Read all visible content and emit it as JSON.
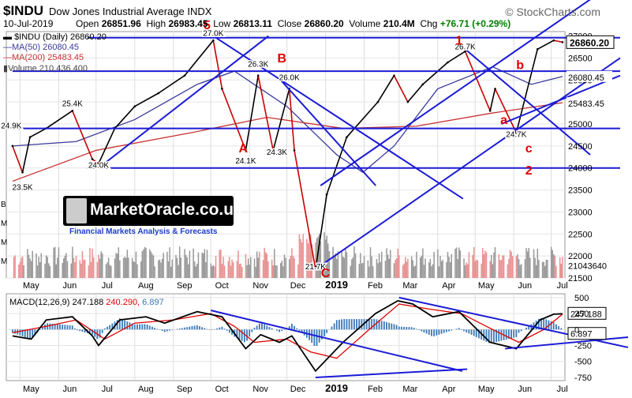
{
  "header": {
    "symbol": "$INDU",
    "name": "Dow Jones Industrial Average INDX",
    "logo": "© StockCharts.com",
    "date": "10-Jul-2019",
    "open_label": "Open",
    "open": "26851.96",
    "high_label": "High",
    "high": "26983.45",
    "low_label": "Low",
    "low": "26813.11",
    "close_label": "Close",
    "close": "26860.20",
    "volume_label": "Volume",
    "volume": "210.4M",
    "chg_label": "Chg",
    "chg": "+76.71 (+0.29%)"
  },
  "legend": {
    "price": "$INDU (Daily) 26860.20",
    "ma50": "MA(50) 26080.45",
    "ma200": "MA(200) 25483.45",
    "volume": "Volume 210,436,400"
  },
  "watermark": {
    "name": "MarketOracle.co.uk",
    "tagline": "Financial Markets Analysis & Forecasts"
  },
  "colors": {
    "price_up": "#000000",
    "price_down": "#cc0000",
    "ma50": "#3a3a9c",
    "ma200": "#c83232",
    "trendline": "#1b1bd6",
    "annotation": "#e00000",
    "volume_up": "#999999",
    "volume_down": "#e89090",
    "macd": "#000000",
    "signal": "#e00000",
    "histogram": "#3a78b8",
    "last_price_box": "#000000"
  },
  "chart_data": [
    {
      "type": "line",
      "title": "Dow Jones Industrial Average INDX",
      "x_labels": [
        "May",
        "Jun",
        "Jul",
        "Aug",
        "Sep",
        "Oct",
        "Nov",
        "Dec",
        "2019",
        "Feb",
        "Mar",
        "Apr",
        "May",
        "Jun",
        "Jul"
      ],
      "y_ticks": [
        "27000",
        "26500",
        "26000",
        "25500",
        "25000",
        "24500",
        "24000",
        "23500",
        "23000",
        "22500",
        "22000",
        "21500"
      ],
      "ylim": [
        21500,
        27100
      ],
      "series": [
        {
          "name": "$INDU (Daily)",
          "values": [
            {
              "x": "2018-04-25",
              "y": 24500
            },
            {
              "x": "2018-05-03",
              "y": 23900
            },
            {
              "x": "2018-05-09",
              "y": 24700
            },
            {
              "x": "2018-05-22",
              "y": 24900
            },
            {
              "x": "2018-06-12",
              "y": 25300
            },
            {
              "x": "2018-06-28",
              "y": 24200
            },
            {
              "x": "2018-07-03",
              "y": 24100
            },
            {
              "x": "2018-07-16",
              "y": 24900
            },
            {
              "x": "2018-08-01",
              "y": 25400
            },
            {
              "x": "2018-08-20",
              "y": 25700
            },
            {
              "x": "2018-09-10",
              "y": 26100
            },
            {
              "x": "2018-10-03",
              "y": 26900
            },
            {
              "x": "2018-10-10",
              "y": 25800
            },
            {
              "x": "2018-10-29",
              "y": 24400
            },
            {
              "x": "2018-11-08",
              "y": 26100
            },
            {
              "x": "2018-11-20",
              "y": 24400
            },
            {
              "x": "2018-12-03",
              "y": 25800
            },
            {
              "x": "2018-12-07",
              "y": 24400
            },
            {
              "x": "2018-12-24",
              "y": 21700
            },
            {
              "x": "2019-01-02",
              "y": 23400
            },
            {
              "x": "2019-01-18",
              "y": 24700
            },
            {
              "x": "2019-02-12",
              "y": 25500
            },
            {
              "x": "2019-02-25",
              "y": 26100
            },
            {
              "x": "2019-03-08",
              "y": 25500
            },
            {
              "x": "2019-03-20",
              "y": 25900
            },
            {
              "x": "2019-04-09",
              "y": 26400
            },
            {
              "x": "2019-04-23",
              "y": 26650
            },
            {
              "x": "2019-05-13",
              "y": 25300
            },
            {
              "x": "2019-05-17",
              "y": 25800
            },
            {
              "x": "2019-06-03",
              "y": 24800
            },
            {
              "x": "2019-06-20",
              "y": 26700
            },
            {
              "x": "2019-07-03",
              "y": 26900
            },
            {
              "x": "2019-07-10",
              "y": 26860
            }
          ]
        },
        {
          "name": "MA(50)",
          "values": [
            {
              "x": "2018-04-25",
              "y": 24500
            },
            {
              "x": "2018-06-15",
              "y": 24600
            },
            {
              "x": "2018-08-01",
              "y": 25100
            },
            {
              "x": "2018-09-20",
              "y": 25900
            },
            {
              "x": "2018-10-20",
              "y": 26200
            },
            {
              "x": "2018-12-01",
              "y": 25400
            },
            {
              "x": "2019-01-10",
              "y": 24300
            },
            {
              "x": "2019-01-31",
              "y": 23900
            },
            {
              "x": "2019-02-25",
              "y": 24500
            },
            {
              "x": "2019-04-01",
              "y": 25800
            },
            {
              "x": "2019-05-15",
              "y": 26300
            },
            {
              "x": "2019-06-15",
              "y": 25900
            },
            {
              "x": "2019-07-10",
              "y": 26080
            }
          ]
        },
        {
          "name": "MA(200)",
          "values": [
            {
              "x": "2018-04-25",
              "y": 23700
            },
            {
              "x": "2018-07-01",
              "y": 24400
            },
            {
              "x": "2018-09-15",
              "y": 24800
            },
            {
              "x": "2018-11-15",
              "y": 25150
            },
            {
              "x": "2019-01-15",
              "y": 24900
            },
            {
              "x": "2019-03-15",
              "y": 24950
            },
            {
              "x": "2019-05-15",
              "y": 25250
            },
            {
              "x": "2019-07-10",
              "y": 25483
            }
          ]
        }
      ],
      "data_labels": [
        {
          "x": "2018-04-24",
          "y": 24900,
          "text": "24.9K"
        },
        {
          "x": "2018-05-03",
          "y": 23500,
          "text": "23.5K"
        },
        {
          "x": "2018-06-12",
          "y": 25400,
          "text": "25.4K"
        },
        {
          "x": "2018-07-03",
          "y": 24000,
          "text": "24.0K"
        },
        {
          "x": "2018-10-03",
          "y": 27000,
          "text": "27.0K"
        },
        {
          "x": "2018-11-08",
          "y": 26300,
          "text": "26.3K"
        },
        {
          "x": "2018-10-29",
          "y": 24100,
          "text": "24.1K"
        },
        {
          "x": "2018-12-03",
          "y": 26000,
          "text": "26.0K"
        },
        {
          "x": "2018-11-23",
          "y": 24300,
          "text": "24.3K"
        },
        {
          "x": "2018-12-24",
          "y": 21700,
          "text": "21.7K"
        },
        {
          "x": "2019-04-23",
          "y": 26700,
          "text": "26.7K"
        },
        {
          "x": "2019-06-03",
          "y": 24700,
          "text": "24.7K"
        }
      ],
      "annotations": [
        {
          "x": "2018-09-28",
          "y": 27150,
          "text": "5"
        },
        {
          "x": "2018-10-27",
          "y": 24350,
          "text": "A"
        },
        {
          "x": "2018-11-27",
          "y": 26400,
          "text": "B"
        },
        {
          "x": "2019-01-01",
          "y": 21520,
          "text": "C"
        },
        {
          "x": "2019-04-18",
          "y": 26800,
          "text": "1"
        },
        {
          "x": "2019-05-24",
          "y": 25000,
          "text": "a"
        },
        {
          "x": "2019-06-06",
          "y": 26250,
          "text": "b"
        },
        {
          "x": "2019-06-13",
          "y": 24350,
          "text": "c"
        },
        {
          "x": "2019-06-13",
          "y": 23850,
          "text": "2"
        }
      ],
      "last_price": "26860.20",
      "right_labels": [
        {
          "y": 26080,
          "text": "26080.45"
        },
        {
          "y": 25483,
          "text": "25483.45"
        },
        {
          "y": 21800,
          "text": "21043640"
        }
      ],
      "trendlines": [
        {
          "from": {
            "x": "2018-04-25",
            "y": 26200
          },
          "to": {
            "x": "2019-07-12",
            "y": 26200
          }
        },
        {
          "from": {
            "x": "2018-06-24",
            "y": 26960
          },
          "to": {
            "x": "2019-07-12",
            "y": 26960
          }
        },
        {
          "from": {
            "x": "2018-04-25",
            "y": 24900
          },
          "to": {
            "x": "2019-07-12",
            "y": 24900
          }
        },
        {
          "from": {
            "x": "2018-06-24",
            "y": 24000
          },
          "to": {
            "x": "2019-07-12",
            "y": 24000
          }
        },
        {
          "from": {
            "x": "2018-07-03",
            "y": 24000
          },
          "to": {
            "x": "2018-10-03",
            "y": 27000
          }
        },
        {
          "from": {
            "x": "2018-10-03",
            "y": 27000
          },
          "to": {
            "x": "2019-03-08",
            "y": 23300
          }
        },
        {
          "from": {
            "x": "2018-11-26",
            "y": 26000
          },
          "to": {
            "x": "2018-12-28",
            "y": 23600
          }
        },
        {
          "from": {
            "x": "2018-12-28",
            "y": 23600
          },
          "to": {
            "x": "2019-07-12",
            "y": 28300
          }
        },
        {
          "from": {
            "x": "2018-12-24",
            "y": 21700
          },
          "to": {
            "x": "2019-07-12",
            "y": 26500
          }
        },
        {
          "from": {
            "x": "2019-04-23",
            "y": 26700
          },
          "to": {
            "x": "2019-06-18",
            "y": 24300
          }
        },
        {
          "from": {
            "x": "2019-05-22",
            "y": 25000
          },
          "to": {
            "x": "2019-07-12",
            "y": 26100
          }
        }
      ],
      "volume_axis_labels": [
        "B",
        "M",
        "M",
        "M"
      ]
    },
    {
      "type": "line",
      "title": "MACD(12,26,9)",
      "legend": [
        "MACD(12,26,9) 247.188",
        "240.290",
        "6.897"
      ],
      "x_labels": [
        "May",
        "Jun",
        "Jul",
        "Aug",
        "Sep",
        "Oct",
        "Nov",
        "Dec",
        "2019",
        "Feb",
        "Mar",
        "Apr",
        "May",
        "Jun",
        "Jul"
      ],
      "y_ticks": [
        "500",
        "250",
        "0",
        "-250",
        "-500",
        "-750"
      ],
      "ylim": [
        -800,
        560
      ],
      "series": [
        {
          "name": "MACD(12,26,9)",
          "values": [
            {
              "x": "2018-04-25",
              "y": -100
            },
            {
              "x": "2018-05-10",
              "y": -150
            },
            {
              "x": "2018-05-22",
              "y": 150
            },
            {
              "x": "2018-06-12",
              "y": 200
            },
            {
              "x": "2018-06-28",
              "y": -100
            },
            {
              "x": "2018-07-03",
              "y": -250
            },
            {
              "x": "2018-07-20",
              "y": 150
            },
            {
              "x": "2018-08-10",
              "y": 200
            },
            {
              "x": "2018-08-25",
              "y": 100
            },
            {
              "x": "2018-09-20",
              "y": 280
            },
            {
              "x": "2018-10-10",
              "y": 200
            },
            {
              "x": "2018-10-29",
              "y": -300
            },
            {
              "x": "2018-11-10",
              "y": -80
            },
            {
              "x": "2018-11-25",
              "y": -200
            },
            {
              "x": "2018-12-05",
              "y": -100
            },
            {
              "x": "2018-12-24",
              "y": -650
            },
            {
              "x": "2019-01-15",
              "y": -200
            },
            {
              "x": "2019-02-10",
              "y": 250
            },
            {
              "x": "2019-02-28",
              "y": 450
            },
            {
              "x": "2019-03-12",
              "y": 400
            },
            {
              "x": "2019-03-28",
              "y": 200
            },
            {
              "x": "2019-04-18",
              "y": 280
            },
            {
              "x": "2019-05-13",
              "y": -200
            },
            {
              "x": "2019-06-03",
              "y": -300
            },
            {
              "x": "2019-06-22",
              "y": 150
            },
            {
              "x": "2019-07-03",
              "y": 240
            },
            {
              "x": "2019-07-10",
              "y": 247.188
            }
          ]
        },
        {
          "name": "240.290",
          "values": [
            {
              "x": "2018-04-25",
              "y": -50
            },
            {
              "x": "2018-05-22",
              "y": 50
            },
            {
              "x": "2018-06-15",
              "y": 150
            },
            {
              "x": "2018-07-08",
              "y": -150
            },
            {
              "x": "2018-08-01",
              "y": 100
            },
            {
              "x": "2018-09-01",
              "y": 150
            },
            {
              "x": "2018-10-01",
              "y": 250
            },
            {
              "x": "2018-10-20",
              "y": 50
            },
            {
              "x": "2018-11-05",
              "y": -200
            },
            {
              "x": "2018-12-01",
              "y": -150
            },
            {
              "x": "2018-12-20",
              "y": -350
            },
            {
              "x": "2019-01-10",
              "y": -450
            },
            {
              "x": "2019-02-05",
              "y": 0
            },
            {
              "x": "2019-03-01",
              "y": 400
            },
            {
              "x": "2019-03-25",
              "y": 320
            },
            {
              "x": "2019-04-20",
              "y": 250
            },
            {
              "x": "2019-05-15",
              "y": 0
            },
            {
              "x": "2019-06-05",
              "y": -200
            },
            {
              "x": "2019-06-25",
              "y": 0
            },
            {
              "x": "2019-07-10",
              "y": 240.29
            }
          ]
        }
      ],
      "histogram_last": "6.897",
      "trendlines": [
        {
          "from": {
            "x": "2018-10-01",
            "y": 300
          },
          "to": {
            "x": "2019-03-01",
            "y": -650
          }
        },
        {
          "from": {
            "x": "2018-12-24",
            "y": -750
          },
          "to": {
            "x": "2019-03-05",
            "y": -620
          }
        },
        {
          "from": {
            "x": "2019-03-01",
            "y": 500
          },
          "to": {
            "x": "2019-07-12",
            "y": -280
          }
        },
        {
          "from": {
            "x": "2019-05-25",
            "y": -300
          },
          "to": {
            "x": "2019-07-12",
            "y": -120
          }
        }
      ]
    }
  ]
}
